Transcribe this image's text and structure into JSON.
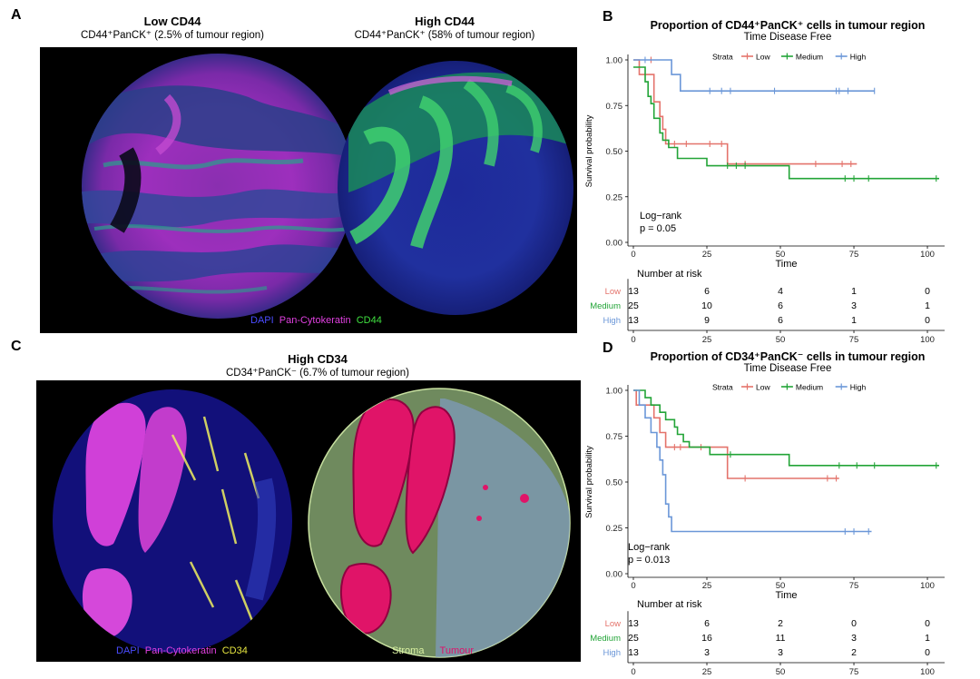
{
  "panels": {
    "A": {
      "letter": "A",
      "left_title": "Low CD44",
      "left_subtitle": "CD44⁺PanCK⁺ (2.5% of tumour region)",
      "right_title": "High CD44",
      "right_subtitle": "CD44⁺PanCK⁺ (58% of tumour region)",
      "legend": [
        {
          "label": "DAPI",
          "color": "#4a4cff"
        },
        {
          "label": "Pan-Cytokeratin",
          "color": "#e040e0"
        },
        {
          "label": "CD44",
          "color": "#40e040"
        }
      ]
    },
    "C": {
      "letter": "C",
      "title": "High CD34",
      "subtitle": "CD34⁺PanCK⁻ (6.7% of tumour region)",
      "legend_left": [
        {
          "label": "DAPI",
          "color": "#4a4cff"
        },
        {
          "label": "Pan-Cytokeratin",
          "color": "#e040e0"
        },
        {
          "label": "CD34",
          "color": "#e8e840"
        }
      ],
      "legend_right": [
        {
          "label": "Stroma",
          "color": "#d8f0a0"
        },
        {
          "label": "Tumour",
          "color": "#e0106a"
        }
      ]
    }
  },
  "chart_data": [
    {
      "panel": "B",
      "type": "line",
      "title": "Proportion of CD44⁺PanCK⁺ cells in tumour region",
      "subtitle": "Time Disease Free",
      "xlabel": "Time",
      "ylabel": "Survival probability",
      "xlim": [
        0,
        104
      ],
      "ylim": [
        0,
        1
      ],
      "x_ticks": [
        0,
        25,
        50,
        75,
        100
      ],
      "y_ticks": [
        "0.00",
        "0.25",
        "0.50",
        "0.75",
        "1.00"
      ],
      "legend_title": "Strata",
      "annotation": [
        "Log−rank",
        "p = 0.05"
      ],
      "series": [
        {
          "name": "Low",
          "color": "#e4736b",
          "steps": [
            [
              0,
              1.0
            ],
            [
              2,
              1.0
            ],
            [
              2,
              0.92
            ],
            [
              7,
              0.92
            ],
            [
              7,
              0.77
            ],
            [
              9,
              0.77
            ],
            [
              9,
              0.69
            ],
            [
              10,
              0.69
            ],
            [
              10,
              0.62
            ],
            [
              11,
              0.62
            ],
            [
              11,
              0.54
            ],
            [
              32,
              0.54
            ],
            [
              32,
              0.43
            ],
            [
              76,
              0.43
            ]
          ],
          "censor": [
            [
              6,
              1.0
            ],
            [
              14,
              0.54
            ],
            [
              18,
              0.54
            ],
            [
              26,
              0.54
            ],
            [
              30,
              0.54
            ],
            [
              38,
              0.43
            ],
            [
              62,
              0.43
            ],
            [
              71,
              0.43
            ],
            [
              74,
              0.43
            ]
          ]
        },
        {
          "name": "Medium",
          "color": "#22a437",
          "steps": [
            [
              0,
              0.96
            ],
            [
              4,
              0.96
            ],
            [
              4,
              0.88
            ],
            [
              5,
              0.88
            ],
            [
              5,
              0.8
            ],
            [
              6,
              0.8
            ],
            [
              6,
              0.76
            ],
            [
              7,
              0.76
            ],
            [
              7,
              0.68
            ],
            [
              9,
              0.68
            ],
            [
              9,
              0.6
            ],
            [
              10,
              0.6
            ],
            [
              10,
              0.56
            ],
            [
              12,
              0.56
            ],
            [
              12,
              0.52
            ],
            [
              15,
              0.52
            ],
            [
              15,
              0.46
            ],
            [
              25,
              0.46
            ],
            [
              25,
              0.42
            ],
            [
              53,
              0.42
            ],
            [
              53,
              0.35
            ],
            [
              104,
              0.35
            ]
          ],
          "censor": [
            [
              32,
              0.42
            ],
            [
              35,
              0.42
            ],
            [
              38,
              0.42
            ],
            [
              72,
              0.35
            ],
            [
              75,
              0.35
            ],
            [
              80,
              0.35
            ],
            [
              103,
              0.35
            ]
          ]
        },
        {
          "name": "High",
          "color": "#6b97d8",
          "steps": [
            [
              0,
              1.0
            ],
            [
              13,
              1.0
            ],
            [
              13,
              0.92
            ],
            [
              16,
              0.92
            ],
            [
              16,
              0.83
            ],
            [
              82,
              0.83
            ]
          ],
          "censor": [
            [
              4,
              1.0
            ],
            [
              26,
              0.83
            ],
            [
              30,
              0.83
            ],
            [
              33,
              0.83
            ],
            [
              48,
              0.83
            ],
            [
              69,
              0.83
            ],
            [
              70,
              0.83
            ],
            [
              73,
              0.83
            ],
            [
              82,
              0.83
            ]
          ]
        }
      ],
      "risk_table": {
        "title": "Number at risk",
        "x": [
          0,
          25,
          50,
          75,
          100
        ],
        "rows": [
          {
            "name": "Low",
            "color": "#e4736b",
            "values": [
              13,
              6,
              4,
              1,
              0
            ]
          },
          {
            "name": "Medium",
            "color": "#22a437",
            "values": [
              25,
              10,
              6,
              3,
              1
            ]
          },
          {
            "name": "High",
            "color": "#6b97d8",
            "values": [
              13,
              9,
              6,
              1,
              0
            ]
          }
        ]
      }
    },
    {
      "panel": "D",
      "type": "line",
      "title": "Proportion of CD34⁺PanCK⁻ cells in tumour region",
      "subtitle": "Time Disease Free",
      "xlabel": "Time",
      "ylabel": "Survival probability",
      "xlim": [
        0,
        104
      ],
      "ylim": [
        0,
        1
      ],
      "x_ticks": [
        0,
        25,
        50,
        75,
        100
      ],
      "y_ticks": [
        "0.00",
        "0.25",
        "0.50",
        "0.75",
        "1.00"
      ],
      "legend_title": "Strata",
      "annotation": [
        "Log−rank",
        "p = 0.013"
      ],
      "series": [
        {
          "name": "Low",
          "color": "#e4736b",
          "steps": [
            [
              0,
              1.0
            ],
            [
              1,
              1.0
            ],
            [
              1,
              0.92
            ],
            [
              7,
              0.92
            ],
            [
              7,
              0.85
            ],
            [
              9,
              0.85
            ],
            [
              9,
              0.77
            ],
            [
              11,
              0.77
            ],
            [
              11,
              0.69
            ],
            [
              32,
              0.69
            ],
            [
              32,
              0.52
            ],
            [
              70,
              0.52
            ]
          ],
          "censor": [
            [
              14,
              0.69
            ],
            [
              16,
              0.69
            ],
            [
              23,
              0.69
            ],
            [
              38,
              0.52
            ],
            [
              66,
              0.52
            ],
            [
              69,
              0.52
            ]
          ]
        },
        {
          "name": "Medium",
          "color": "#22a437",
          "steps": [
            [
              0,
              1.0
            ],
            [
              4,
              1.0
            ],
            [
              4,
              0.96
            ],
            [
              6,
              0.96
            ],
            [
              6,
              0.92
            ],
            [
              9,
              0.92
            ],
            [
              9,
              0.88
            ],
            [
              11,
              0.88
            ],
            [
              11,
              0.84
            ],
            [
              14,
              0.84
            ],
            [
              14,
              0.8
            ],
            [
              15,
              0.8
            ],
            [
              15,
              0.76
            ],
            [
              17,
              0.76
            ],
            [
              17,
              0.72
            ],
            [
              19,
              0.72
            ],
            [
              19,
              0.69
            ],
            [
              26,
              0.69
            ],
            [
              26,
              0.65
            ],
            [
              53,
              0.65
            ],
            [
              53,
              0.59
            ],
            [
              104,
              0.59
            ]
          ],
          "censor": [
            [
              33,
              0.65
            ],
            [
              70,
              0.59
            ],
            [
              76,
              0.59
            ],
            [
              82,
              0.59
            ],
            [
              103,
              0.59
            ]
          ]
        },
        {
          "name": "High",
          "color": "#6b97d8",
          "steps": [
            [
              0,
              1.0
            ],
            [
              2,
              1.0
            ],
            [
              2,
              0.92
            ],
            [
              4,
              0.92
            ],
            [
              4,
              0.85
            ],
            [
              6,
              0.85
            ],
            [
              6,
              0.77
            ],
            [
              8,
              0.77
            ],
            [
              8,
              0.69
            ],
            [
              9,
              0.69
            ],
            [
              9,
              0.62
            ],
            [
              10,
              0.62
            ],
            [
              10,
              0.54
            ],
            [
              11,
              0.54
            ],
            [
              11,
              0.38
            ],
            [
              12,
              0.38
            ],
            [
              12,
              0.31
            ],
            [
              13,
              0.31
            ],
            [
              13,
              0.23
            ],
            [
              81,
              0.23
            ]
          ],
          "censor": [
            [
              72,
              0.23
            ],
            [
              75,
              0.23
            ],
            [
              80,
              0.23
            ]
          ]
        }
      ],
      "risk_table": {
        "title": "Number at risk",
        "x": [
          0,
          25,
          50,
          75,
          100
        ],
        "rows": [
          {
            "name": "Low",
            "color": "#e4736b",
            "values": [
              13,
              6,
              2,
              0,
              0
            ]
          },
          {
            "name": "Medium",
            "color": "#22a437",
            "values": [
              25,
              16,
              11,
              3,
              1
            ]
          },
          {
            "name": "High",
            "color": "#6b97d8",
            "values": [
              13,
              3,
              3,
              2,
              0
            ]
          }
        ]
      }
    }
  ]
}
